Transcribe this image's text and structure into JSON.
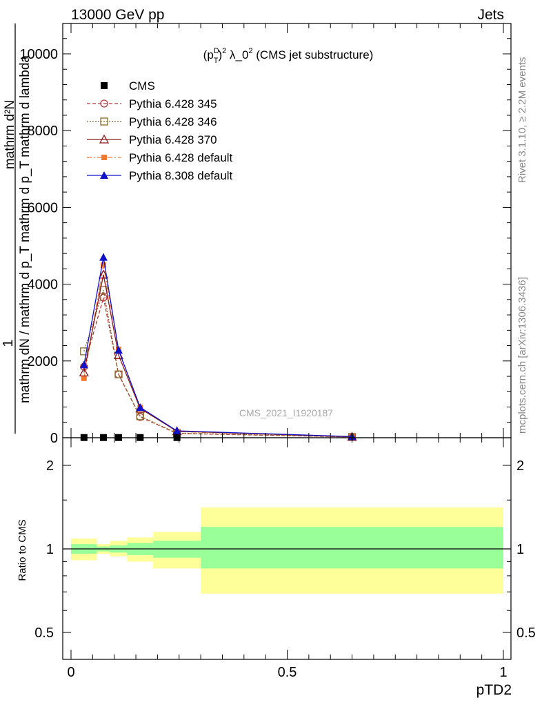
{
  "header": {
    "left": "13000 GeV pp",
    "right": "Jets"
  },
  "side_labels": {
    "rivet": "Rivet 3.1.10, ≥ 2.2M events",
    "mcplots": "mcplots.cern.ch [arXiv:1306.3436]"
  },
  "analysis_id": "CMS_2021_I1920187",
  "colors": {
    "cms": "#000000",
    "p345": "#b03a3a",
    "p346": "#8c6a2c",
    "p370": "#8b1a1a",
    "p6def": "#f07a30",
    "p8def": "#1010c8",
    "band_inner": "#99ff99",
    "band_outer": "#ffff99"
  },
  "chart_data": [
    {
      "type": "line",
      "title": "(p_T^D)^2 λ_0^2 (CMS jet substructure)",
      "title_parts": {
        "p": "(p",
        "sup1": "D",
        "sub1": "T",
        "close": ")",
        "sup2": "2",
        "mid": " λ_0",
        "sup3": "2",
        "tail": " (CMS jet substructure)"
      },
      "ylabel_top": "1",
      "ylabel_lines": [
        "mathrm d²N",
        "mathrm dN / mathrm d p_T mathrm d p_T mathrm d lambda"
      ],
      "xlim": [
        0,
        1
      ],
      "ylim": [
        0,
        10700
      ],
      "yticks": [
        0,
        2000,
        4000,
        6000,
        8000,
        10000
      ],
      "ytick_labels": [
        "0",
        "2000",
        "4000",
        "6000",
        "8000",
        "10000"
      ],
      "legend": [
        {
          "name": "CMS",
          "key": "cms"
        },
        {
          "name": "Pythia 6.428 345",
          "key": "p345"
        },
        {
          "name": "Pythia 6.428 346",
          "key": "p346"
        },
        {
          "name": "Pythia 6.428 370",
          "key": "p370"
        },
        {
          "name": "Pythia 6.428 default",
          "key": "p6def"
        },
        {
          "name": "Pythia 8.308 default",
          "key": "p8def"
        }
      ],
      "x": [
        0.03,
        0.075,
        0.11,
        0.16,
        0.245,
        0.65
      ],
      "series": [
        {
          "key": "cms",
          "name": "CMS",
          "values": [
            5,
            5,
            5,
            5,
            5,
            5
          ]
        },
        {
          "key": "p345",
          "name": "Pythia 6.428 345",
          "values": [
            1850,
            3650,
            1650,
            540,
            110,
            20
          ]
        },
        {
          "key": "p346",
          "name": "Pythia 6.428 346",
          "values": [
            2250,
            3850,
            1650,
            560,
            120,
            20
          ]
        },
        {
          "key": "p370",
          "name": "Pythia 6.428 370",
          "values": [
            1700,
            4250,
            2150,
            760,
            170,
            25
          ]
        },
        {
          "key": "p6def",
          "name": "Pythia 6.428 default",
          "values": [
            1550,
            4500,
            2300,
            790,
            160,
            25
          ]
        },
        {
          "key": "p8def",
          "name": "Pythia 8.308 default",
          "values": [
            1900,
            4700,
            2280,
            790,
            180,
            30
          ]
        }
      ],
      "p8_errors": [
        0,
        100,
        60,
        30,
        0,
        0
      ]
    },
    {
      "type": "area",
      "ylabel": "Ratio to CMS",
      "xlabel": "pTD2",
      "xlim": [
        0,
        1
      ],
      "ylim": [
        0.4,
        2.3
      ],
      "xticks": [
        0,
        0.5,
        1
      ],
      "xtick_labels": [
        "0",
        "0.5",
        "1"
      ],
      "yticks": [
        0.5,
        1,
        2
      ],
      "ytick_labels": [
        "0.5",
        "1",
        "2"
      ],
      "bins": [
        {
          "x0": 0.0,
          "x1": 0.06,
          "inner": [
            0.96,
            1.04
          ],
          "outer": [
            0.91,
            1.09
          ]
        },
        {
          "x0": 0.06,
          "x1": 0.09,
          "inner": [
            0.98,
            1.02
          ],
          "outer": [
            0.96,
            1.04
          ]
        },
        {
          "x0": 0.09,
          "x1": 0.13,
          "inner": [
            0.97,
            1.03
          ],
          "outer": [
            0.94,
            1.07
          ]
        },
        {
          "x0": 0.13,
          "x1": 0.19,
          "inner": [
            0.95,
            1.05
          ],
          "outer": [
            0.9,
            1.1
          ]
        },
        {
          "x0": 0.19,
          "x1": 0.3,
          "inner": [
            0.93,
            1.07
          ],
          "outer": [
            0.85,
            1.15
          ]
        },
        {
          "x0": 0.3,
          "x1": 1.0,
          "inner": [
            0.85,
            1.2
          ],
          "outer": [
            0.69,
            1.41
          ]
        }
      ]
    }
  ]
}
